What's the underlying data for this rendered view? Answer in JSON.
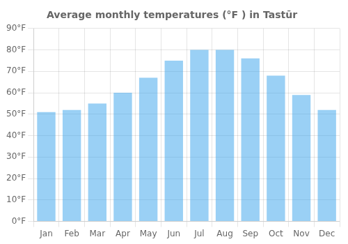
{
  "chart_data": {
    "type": "bar",
    "title": "Average monthly temperatures (°F ) in Tastūr",
    "categories": [
      "Jan",
      "Feb",
      "Mar",
      "Apr",
      "May",
      "Jun",
      "Jul",
      "Aug",
      "Sep",
      "Oct",
      "Nov",
      "Dec"
    ],
    "values": [
      51,
      52,
      55,
      60,
      67,
      75,
      80,
      80,
      76,
      68,
      59,
      52
    ],
    "ylim": [
      0,
      90
    ],
    "yticks": [
      {
        "value": 0,
        "label": "0°F"
      },
      {
        "value": 10,
        "label": "10°F"
      },
      {
        "value": 20,
        "label": "20°F"
      },
      {
        "value": 30,
        "label": "30°F"
      },
      {
        "value": 40,
        "label": "40°F"
      },
      {
        "value": 50,
        "label": "50°F"
      },
      {
        "value": 60,
        "label": "60°F"
      },
      {
        "value": 70,
        "label": "70°F"
      },
      {
        "value": 80,
        "label": "80°F"
      },
      {
        "value": 90,
        "label": "90°F"
      }
    ],
    "grid": true
  }
}
